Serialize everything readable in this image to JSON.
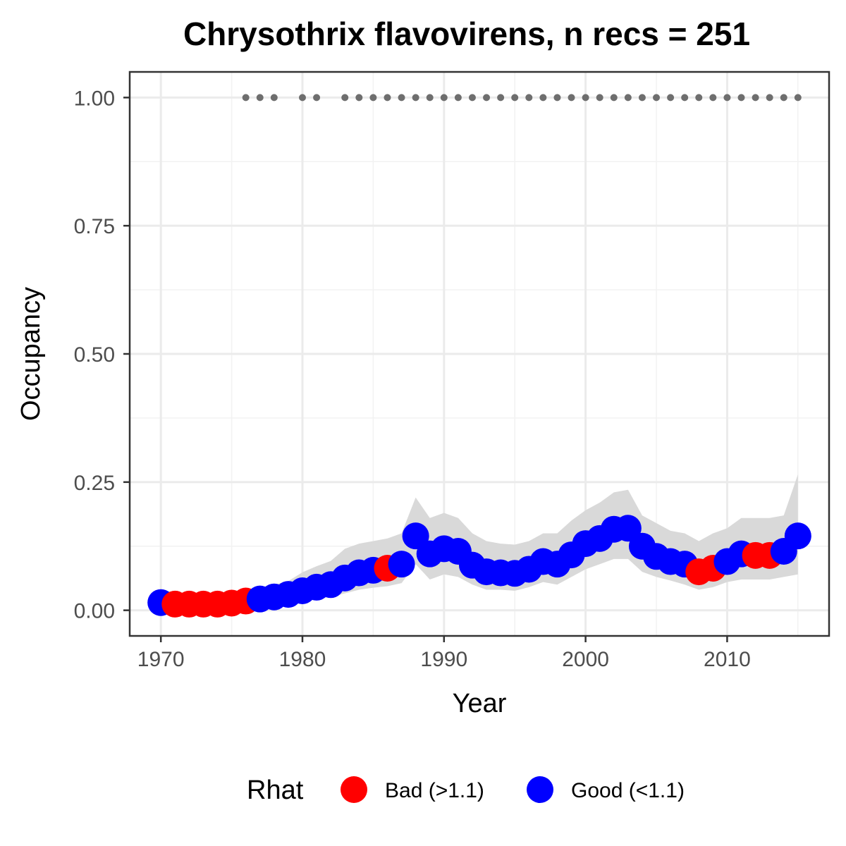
{
  "chart_data": {
    "type": "scatter",
    "title": "Chrysothrix flavovirens, n recs = 251",
    "xlabel": "Year",
    "ylabel": "Occupancy",
    "xlim": [
      1967.8,
      2017.2
    ],
    "ylim": [
      -0.05,
      1.05
    ],
    "x_ticks": [
      1970,
      1980,
      1990,
      2000,
      2010
    ],
    "x_tick_labels": [
      "1970",
      "1980",
      "1990",
      "2000",
      "2010"
    ],
    "y_ticks": [
      0,
      0.25,
      0.5,
      0.75,
      1
    ],
    "y_tick_labels": [
      "0.00",
      "0.25",
      "0.50",
      "0.75",
      "1.00"
    ],
    "grid": true,
    "legend": {
      "title": "Rhat",
      "position": "bottom",
      "entries": [
        {
          "label": "Bad (>1.1)",
          "color": "#ff0000"
        },
        {
          "label": "Good (<1.1)",
          "color": "#0000ff"
        }
      ]
    },
    "colors": {
      "bad": "#ff0000",
      "good": "#0000ff",
      "ribbon": "#d9d9d9",
      "record_dots": "#6e6e6e"
    },
    "series": [
      {
        "name": "Rhat",
        "points": [
          {
            "year": 1970,
            "mean": 0.015,
            "lower": 0.002,
            "upper": 0.04,
            "rhat": "good"
          },
          {
            "year": 1971,
            "mean": 0.012,
            "lower": 0.002,
            "upper": 0.035,
            "rhat": "bad"
          },
          {
            "year": 1972,
            "mean": 0.012,
            "lower": 0.002,
            "upper": 0.034,
            "rhat": "bad"
          },
          {
            "year": 1973,
            "mean": 0.012,
            "lower": 0.002,
            "upper": 0.033,
            "rhat": "bad"
          },
          {
            "year": 1974,
            "mean": 0.012,
            "lower": 0.002,
            "upper": 0.033,
            "rhat": "bad"
          },
          {
            "year": 1975,
            "mean": 0.014,
            "lower": 0.003,
            "upper": 0.035,
            "rhat": "bad"
          },
          {
            "year": 1976,
            "mean": 0.018,
            "lower": 0.005,
            "upper": 0.04,
            "rhat": "bad"
          },
          {
            "year": 1977,
            "mean": 0.022,
            "lower": 0.008,
            "upper": 0.045,
            "rhat": "good"
          },
          {
            "year": 1978,
            "mean": 0.026,
            "lower": 0.01,
            "upper": 0.05,
            "rhat": "good"
          },
          {
            "year": 1979,
            "mean": 0.031,
            "lower": 0.013,
            "upper": 0.057,
            "rhat": "good"
          },
          {
            "year": 1980,
            "mean": 0.038,
            "lower": 0.017,
            "upper": 0.074,
            "rhat": "good"
          },
          {
            "year": 1981,
            "mean": 0.045,
            "lower": 0.022,
            "upper": 0.086,
            "rhat": "good"
          },
          {
            "year": 1982,
            "mean": 0.05,
            "lower": 0.026,
            "upper": 0.096,
            "rhat": "good"
          },
          {
            "year": 1983,
            "mean": 0.063,
            "lower": 0.033,
            "upper": 0.12,
            "rhat": "good"
          },
          {
            "year": 1984,
            "mean": 0.073,
            "lower": 0.04,
            "upper": 0.13,
            "rhat": "good"
          },
          {
            "year": 1985,
            "mean": 0.078,
            "lower": 0.044,
            "upper": 0.135,
            "rhat": "good"
          },
          {
            "year": 1986,
            "mean": 0.082,
            "lower": 0.047,
            "upper": 0.14,
            "rhat": "bad"
          },
          {
            "year": 1987,
            "mean": 0.09,
            "lower": 0.053,
            "upper": 0.15,
            "rhat": "good"
          },
          {
            "year": 1988,
            "mean": 0.145,
            "lower": 0.09,
            "upper": 0.22,
            "rhat": "good"
          },
          {
            "year": 1989,
            "mean": 0.11,
            "lower": 0.06,
            "upper": 0.18,
            "rhat": "good"
          },
          {
            "year": 1990,
            "mean": 0.12,
            "lower": 0.07,
            "upper": 0.19,
            "rhat": "good"
          },
          {
            "year": 1991,
            "mean": 0.115,
            "lower": 0.065,
            "upper": 0.18,
            "rhat": "good"
          },
          {
            "year": 1992,
            "mean": 0.088,
            "lower": 0.05,
            "upper": 0.15,
            "rhat": "good"
          },
          {
            "year": 1993,
            "mean": 0.075,
            "lower": 0.04,
            "upper": 0.135,
            "rhat": "good"
          },
          {
            "year": 1994,
            "mean": 0.073,
            "lower": 0.04,
            "upper": 0.13,
            "rhat": "good"
          },
          {
            "year": 1995,
            "mean": 0.072,
            "lower": 0.038,
            "upper": 0.128,
            "rhat": "good"
          },
          {
            "year": 1996,
            "mean": 0.08,
            "lower": 0.045,
            "upper": 0.135,
            "rhat": "good"
          },
          {
            "year": 1997,
            "mean": 0.095,
            "lower": 0.055,
            "upper": 0.15,
            "rhat": "good"
          },
          {
            "year": 1998,
            "mean": 0.09,
            "lower": 0.05,
            "upper": 0.15,
            "rhat": "good"
          },
          {
            "year": 1999,
            "mean": 0.108,
            "lower": 0.065,
            "upper": 0.175,
            "rhat": "good"
          },
          {
            "year": 2000,
            "mean": 0.13,
            "lower": 0.08,
            "upper": 0.195,
            "rhat": "good"
          },
          {
            "year": 2001,
            "mean": 0.14,
            "lower": 0.09,
            "upper": 0.21,
            "rhat": "good"
          },
          {
            "year": 2002,
            "mean": 0.158,
            "lower": 0.1,
            "upper": 0.23,
            "rhat": "good"
          },
          {
            "year": 2003,
            "mean": 0.16,
            "lower": 0.1,
            "upper": 0.235,
            "rhat": "good"
          },
          {
            "year": 2004,
            "mean": 0.125,
            "lower": 0.075,
            "upper": 0.185,
            "rhat": "good"
          },
          {
            "year": 2005,
            "mean": 0.105,
            "lower": 0.065,
            "upper": 0.17,
            "rhat": "good"
          },
          {
            "year": 2006,
            "mean": 0.095,
            "lower": 0.058,
            "upper": 0.155,
            "rhat": "good"
          },
          {
            "year": 2007,
            "mean": 0.09,
            "lower": 0.05,
            "upper": 0.15,
            "rhat": "good"
          },
          {
            "year": 2008,
            "mean": 0.075,
            "lower": 0.04,
            "upper": 0.135,
            "rhat": "bad"
          },
          {
            "year": 2009,
            "mean": 0.082,
            "lower": 0.045,
            "upper": 0.15,
            "rhat": "bad"
          },
          {
            "year": 2010,
            "mean": 0.095,
            "lower": 0.055,
            "upper": 0.16,
            "rhat": "good"
          },
          {
            "year": 2011,
            "mean": 0.11,
            "lower": 0.06,
            "upper": 0.18,
            "rhat": "good"
          },
          {
            "year": 2012,
            "mean": 0.107,
            "lower": 0.06,
            "upper": 0.18,
            "rhat": "bad"
          },
          {
            "year": 2013,
            "mean": 0.107,
            "lower": 0.06,
            "upper": 0.18,
            "rhat": "bad"
          },
          {
            "year": 2014,
            "mean": 0.115,
            "lower": 0.065,
            "upper": 0.185,
            "rhat": "good"
          },
          {
            "year": 2015,
            "mean": 0.145,
            "lower": 0.07,
            "upper": 0.265,
            "rhat": "good"
          }
        ]
      }
    ],
    "record_years": [
      1976,
      1977,
      1978,
      1980,
      1981,
      1983,
      1984,
      1985,
      1986,
      1987,
      1988,
      1989,
      1990,
      1991,
      1992,
      1993,
      1994,
      1995,
      1996,
      1997,
      1998,
      1999,
      2000,
      2001,
      2002,
      2003,
      2004,
      2005,
      2006,
      2007,
      2008,
      2009,
      2010,
      2011,
      2012,
      2013,
      2014,
      2015
    ],
    "record_value": 1.0
  }
}
